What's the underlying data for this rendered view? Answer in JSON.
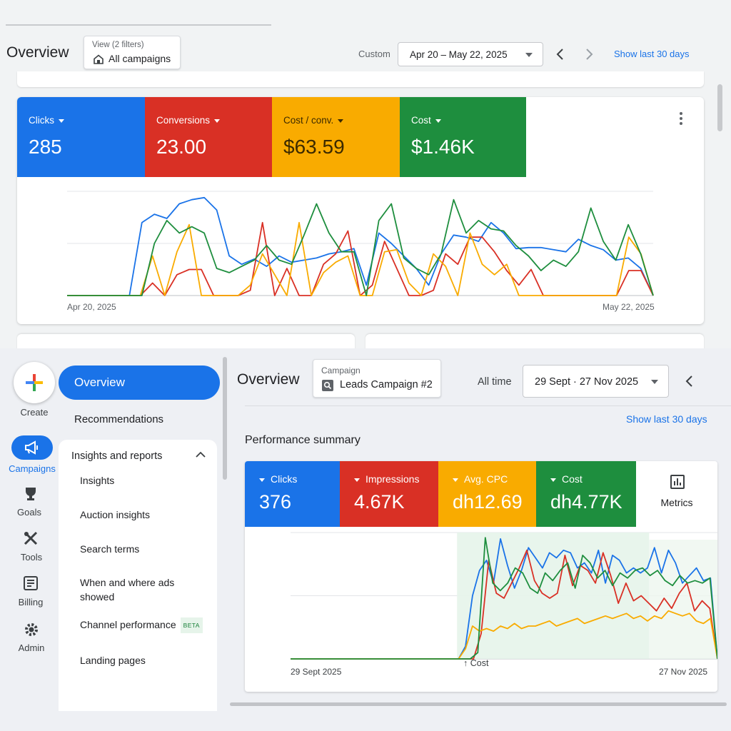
{
  "top": {
    "title": "Overview",
    "filter": {
      "label": "View (2 filters)",
      "value": "All campaigns",
      "icon": "home-icon"
    },
    "range_label": "Custom",
    "date_range": "Apr 20 – May 22, 2025",
    "show_last": "Show last 30 days",
    "tiles": [
      {
        "label": "Clicks",
        "value": "285",
        "color": "#1a73e8"
      },
      {
        "label": "Conversions",
        "value": "23.00",
        "color": "#d93025"
      },
      {
        "label": "Cost / conv.",
        "value": "$63.59",
        "color": "#f9ab00"
      },
      {
        "label": "Cost",
        "value": "$1.46K",
        "color": "#1e8e3e"
      }
    ],
    "chart_data": {
      "type": "line",
      "x_start": "Apr 20, 2025",
      "x_end": "May 22, 2025",
      "x_count": 32,
      "ylim": [
        0,
        100
      ],
      "grid": true,
      "series": [
        {
          "color": "#1a73e8",
          "values": [
            0,
            0,
            0,
            0,
            0,
            0,
            70,
            78,
            74,
            88,
            92,
            94,
            82,
            38,
            30,
            35,
            28,
            38,
            32,
            34,
            36,
            40,
            42,
            45,
            10,
            60,
            50,
            38,
            26,
            10,
            40,
            58,
            56,
            52,
            70,
            60,
            45,
            46,
            46,
            44,
            42,
            54,
            48,
            44,
            34,
            36,
            26,
            0
          ]
        },
        {
          "color": "#d93025",
          "values": [
            0,
            0,
            0,
            0,
            0,
            0,
            0,
            12,
            0,
            20,
            25,
            25,
            0,
            0,
            0,
            5,
            70,
            0,
            26,
            0,
            0,
            30,
            40,
            62,
            0,
            10,
            52,
            26,
            0,
            0,
            5,
            40,
            30,
            56,
            56,
            42,
            24,
            10,
            25,
            0,
            0,
            0,
            0,
            0,
            0,
            0,
            24,
            24,
            0
          ]
        },
        {
          "color": "#f9ab00",
          "values": [
            0,
            0,
            0,
            0,
            0,
            0,
            0,
            38,
            0,
            42,
            68,
            0,
            0,
            0,
            0,
            10,
            40,
            20,
            0,
            70,
            0,
            22,
            32,
            38,
            0,
            0,
            42,
            44,
            12,
            0,
            40,
            28,
            0,
            60,
            30,
            20,
            30,
            0,
            0,
            0,
            0,
            0,
            0,
            0,
            0,
            0,
            56,
            40,
            0
          ]
        },
        {
          "color": "#1e8e3e",
          "values": [
            0,
            0,
            0,
            0,
            0,
            0,
            0,
            50,
            72,
            60,
            66,
            60,
            26,
            22,
            28,
            34,
            48,
            34,
            30,
            58,
            88,
            60,
            42,
            42,
            0,
            72,
            88,
            36,
            26,
            20,
            40,
            92,
            60,
            72,
            64,
            62,
            48,
            38,
            24,
            34,
            28,
            42,
            84,
            52,
            34,
            68,
            40,
            0
          ]
        }
      ]
    }
  },
  "rail": [
    {
      "name": "create",
      "label": "Create",
      "icon": "plus-icon"
    },
    {
      "name": "campaigns",
      "label": "Campaigns",
      "icon": "megaphone-icon"
    },
    {
      "name": "goals",
      "label": "Goals",
      "icon": "trophy-icon"
    },
    {
      "name": "tools",
      "label": "Tools",
      "icon": "tools-icon"
    },
    {
      "name": "billing",
      "label": "Billing",
      "icon": "billing-icon"
    },
    {
      "name": "admin",
      "label": "Admin",
      "icon": "gear-icon"
    }
  ],
  "nav": {
    "overview": "Overview",
    "recommendations": "Recommendations",
    "insights_header": "Insights and reports",
    "sub_items": [
      "Insights",
      "Auction insights",
      "Search terms",
      "When and where ads showed",
      "Channel performance",
      "Landing pages"
    ],
    "beta_badge": "BETA"
  },
  "bottom": {
    "title": "Overview",
    "filter": {
      "label": "Campaign",
      "value": "Leads Campaign #2",
      "icon": "search-icon"
    },
    "range_label": "All time",
    "date_range": "29 Sept · 27 Nov 2025",
    "show_last": "Show last 30 days",
    "section_title": "Performance summary",
    "tiles": [
      {
        "label": "Clicks",
        "value": "376",
        "color": "#1a73e8"
      },
      {
        "label": "Impressions",
        "value": "4.67K",
        "color": "#d93025"
      },
      {
        "label": "Avg. CPC",
        "value": "dh12.69",
        "color": "#f9ab00"
      },
      {
        "label": "Cost",
        "value": "dh4.77K",
        "color": "#1e8e3e"
      }
    ],
    "metrics_label": "Metrics",
    "chart_data": {
      "type": "line",
      "x_start": "29 Sept 2025",
      "x_end": "27 Nov 2025",
      "annotation": "Cost",
      "ylim": [
        0,
        100
      ],
      "grid": true,
      "highlight_fraction": [
        0.39,
        0.84
      ],
      "series": [
        {
          "color": "#1a73e8",
          "values": [
            0,
            0,
            0,
            0,
            0,
            0,
            0,
            0,
            0,
            0,
            0,
            0,
            0,
            0,
            0,
            0,
            0,
            0,
            0,
            0,
            0,
            0,
            0,
            0,
            0,
            10,
            50,
            70,
            78,
            60,
            95,
            74,
            56,
            70,
            88,
            80,
            72,
            84,
            80,
            86,
            84,
            72,
            76,
            68,
            86,
            60,
            82,
            78,
            68,
            72,
            68,
            72,
            88,
            68,
            86,
            76,
            60,
            66,
            72,
            62,
            64,
            0
          ]
        },
        {
          "color": "#d93025",
          "values": [
            0,
            0,
            0,
            0,
            0,
            0,
            0,
            0,
            0,
            0,
            0,
            0,
            0,
            0,
            0,
            0,
            0,
            0,
            0,
            0,
            0,
            0,
            0,
            0,
            0,
            20,
            78,
            52,
            48,
            60,
            72,
            86,
            62,
            52,
            48,
            52,
            82,
            58,
            74,
            70,
            60,
            84,
            66,
            44,
            60,
            46,
            50,
            44,
            38,
            48,
            40,
            52,
            60,
            38,
            46,
            40,
            0
          ]
        },
        {
          "color": "#f9ab00",
          "values": [
            0,
            0,
            0,
            0,
            0,
            0,
            0,
            0,
            0,
            0,
            0,
            0,
            0,
            0,
            0,
            0,
            0,
            0,
            0,
            0,
            0,
            0,
            0,
            0,
            0,
            8,
            26,
            22,
            24,
            22,
            26,
            24,
            28,
            24,
            26,
            26,
            28,
            30,
            26,
            28,
            30,
            32,
            28,
            30,
            32,
            34,
            32,
            34,
            36,
            32,
            34,
            30,
            34,
            32,
            38,
            36,
            34,
            36,
            30,
            28,
            32,
            0
          ]
        },
        {
          "color": "#1e8e3e",
          "values": [
            0,
            0,
            0,
            0,
            0,
            0,
            0,
            0,
            0,
            0,
            0,
            0,
            0,
            0,
            0,
            0,
            0,
            0,
            0,
            0,
            0,
            0,
            0,
            0,
            0,
            5,
            96,
            60,
            54,
            60,
            72,
            68,
            56,
            52,
            68,
            62,
            70,
            76,
            56,
            82,
            76,
            64,
            70,
            58,
            68,
            64,
            70,
            72,
            66,
            70,
            62,
            58,
            66,
            60,
            62,
            60,
            64,
            0
          ]
        }
      ]
    }
  }
}
